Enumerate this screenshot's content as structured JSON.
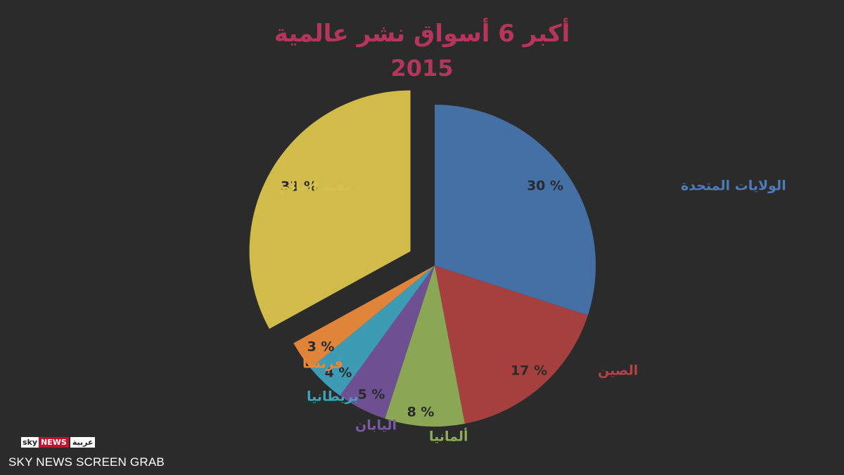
{
  "chart_data": {
    "type": "pie",
    "title": "أكبر 6 أسواق نشر عالمية",
    "subtitle": "2015",
    "slices": [
      {
        "label": "الولايات المتحدة",
        "value": 30,
        "value_text": "30 %",
        "color": "#4470a6",
        "label_color": "#4d7cb6"
      },
      {
        "label": "الصين",
        "value": 17,
        "value_text": "17 %",
        "color": "#a5403f",
        "label_color": "#b44444"
      },
      {
        "label": "ألمانيا",
        "value": 8,
        "value_text": "8 %",
        "color": "#8ba755",
        "label_color": "#8fae58"
      },
      {
        "label": "اليابان",
        "value": 5,
        "value_text": "5 %",
        "color": "#6e4f92",
        "label_color": "#7a5aa3"
      },
      {
        "label": "بريطانيا",
        "value": 4,
        "value_text": "4 %",
        "color": "#3e9bb4",
        "label_color": "#3fa3bd"
      },
      {
        "label": "فرنسا",
        "value": 3,
        "value_text": "3 %",
        "color": "#e0843a",
        "label_color": "#e58a3c"
      },
      {
        "label": "بقية العالم",
        "value": 33,
        "value_text": "33 %",
        "color": "#d1bb4b",
        "label_color": "#d8c24e",
        "exploded": true
      }
    ],
    "value_text_color": "#2a2a2a"
  },
  "branding": {
    "logo_sky": "sky",
    "logo_news": "NEWS",
    "logo_arabic": "عربية",
    "credit": "SKY NEWS SCREEN GRAB"
  }
}
